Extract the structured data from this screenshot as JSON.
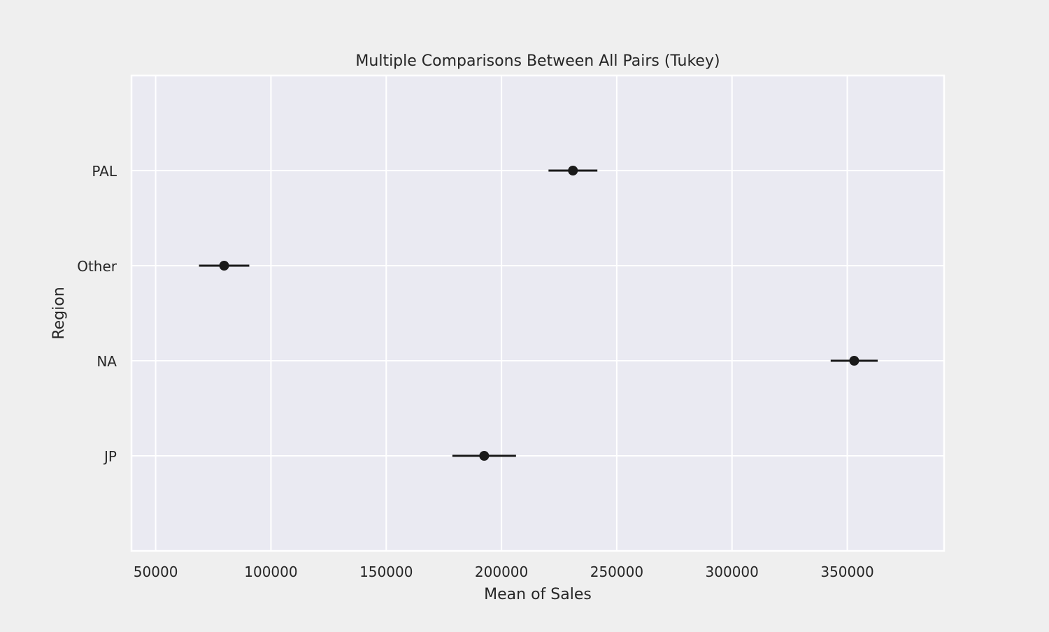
{
  "chart_data": {
    "type": "scatter",
    "title": "Multiple Comparisons Between All Pairs (Tukey)",
    "xlabel": "Mean of Sales",
    "ylabel": "Region",
    "xlim": [
      39500,
      392000
    ],
    "xticks": [
      50000,
      100000,
      150000,
      200000,
      250000,
      300000,
      350000
    ],
    "categories": [
      "JP",
      "NA",
      "Other",
      "PAL"
    ],
    "means": [
      192500,
      353000,
      79700,
      231000
    ],
    "lower": [
      178700,
      342800,
      68800,
      220400
    ],
    "upper": [
      206300,
      363200,
      90600,
      241600
    ],
    "grid": true,
    "colors": {
      "plot_background": "#eaeaf2",
      "figure_background": "#efefef",
      "grid": "#ffffff",
      "marker": "#1a1a1a"
    }
  }
}
